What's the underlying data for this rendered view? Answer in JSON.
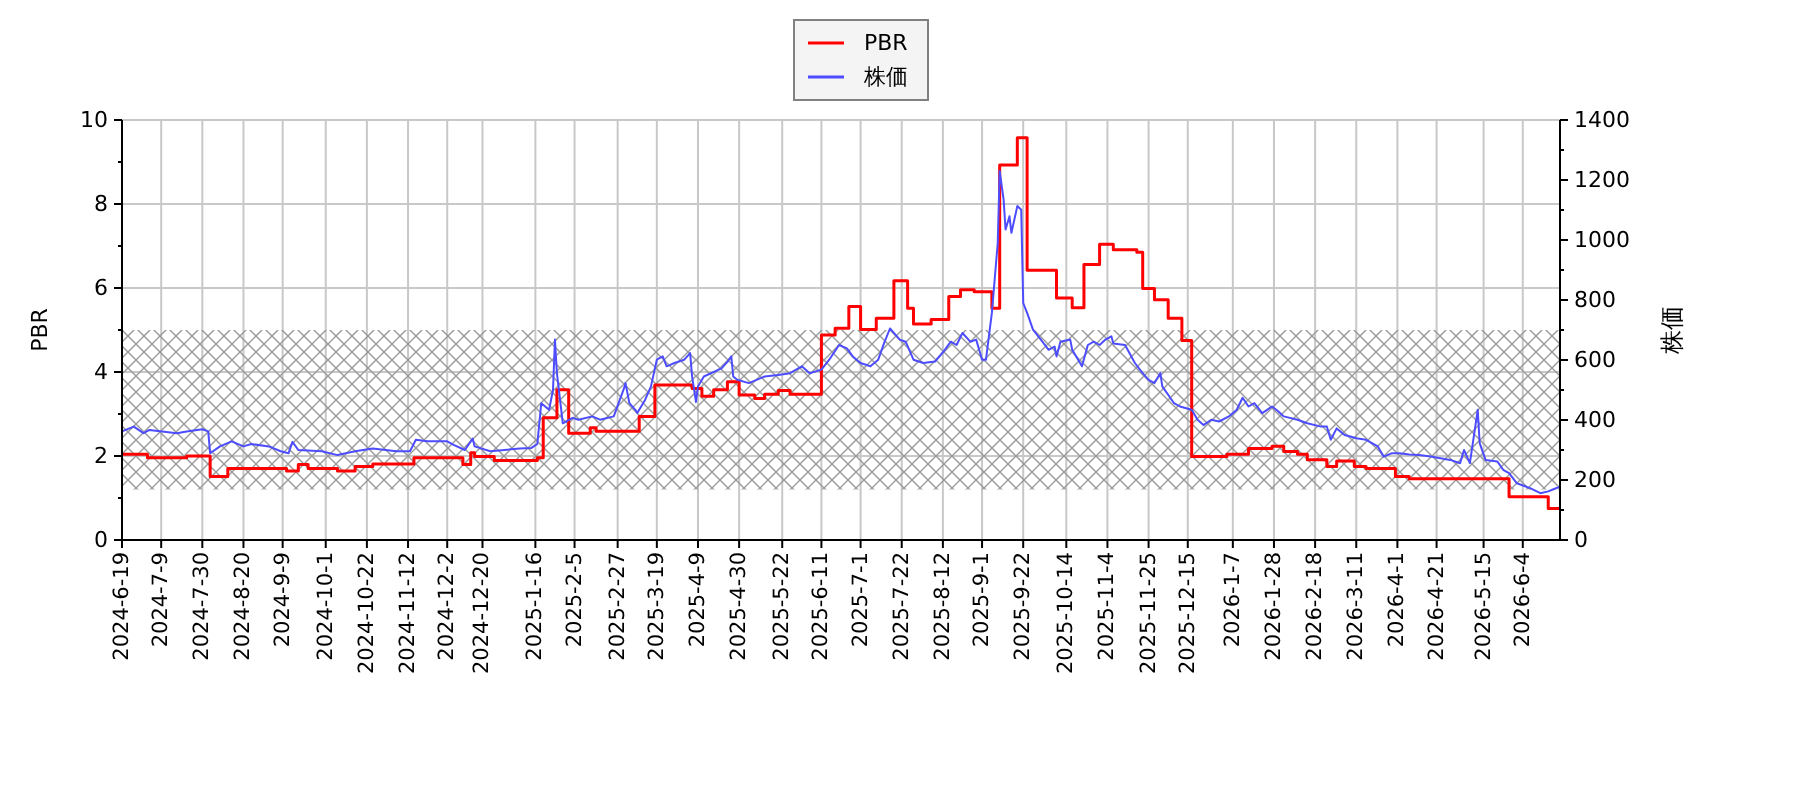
{
  "chart_data": {
    "type": "line",
    "ylabel": "PBR",
    "y2label": "株価",
    "xlim": [
      "2024-06-19",
      "2026-06-23"
    ],
    "xticks": [
      {
        "value": "2024-06-19",
        "label": "2024-6-19"
      },
      {
        "value": "2024-07-09",
        "label": "2024-7-9"
      },
      {
        "value": "2024-07-30",
        "label": "2024-7-30"
      },
      {
        "value": "2024-08-20",
        "label": "2024-8-20"
      },
      {
        "value": "2024-09-09",
        "label": "2024-9-9"
      },
      {
        "value": "2024-10-01",
        "label": "2024-10-1"
      },
      {
        "value": "2024-10-22",
        "label": "2024-10-22"
      },
      {
        "value": "2024-11-12",
        "label": "2024-11-12"
      },
      {
        "value": "2024-12-02",
        "label": "2024-12-2"
      },
      {
        "value": "2024-12-20",
        "label": "2024-12-20"
      },
      {
        "value": "2025-01-16",
        "label": "2025-1-16"
      },
      {
        "value": "2025-02-05",
        "label": "2025-2-5"
      },
      {
        "value": "2025-02-27",
        "label": "2025-2-27"
      },
      {
        "value": "2025-03-19",
        "label": "2025-3-19"
      },
      {
        "value": "2025-04-09",
        "label": "2025-4-9"
      },
      {
        "value": "2025-04-30",
        "label": "2025-4-30"
      },
      {
        "value": "2025-05-22",
        "label": "2025-5-22"
      },
      {
        "value": "2025-06-11",
        "label": "2025-6-11"
      },
      {
        "value": "2025-07-01",
        "label": "2025-7-1"
      },
      {
        "value": "2025-07-22",
        "label": "2025-7-22"
      },
      {
        "value": "2025-08-12",
        "label": "2025-8-12"
      },
      {
        "value": "2025-09-01",
        "label": "2025-9-1"
      },
      {
        "value": "2025-09-22",
        "label": "2025-9-22"
      },
      {
        "value": "2025-10-14",
        "label": "2025-10-14"
      },
      {
        "value": "2025-11-04",
        "label": "2025-11-4"
      },
      {
        "value": "2025-11-25",
        "label": "2025-11-25"
      },
      {
        "value": "2025-12-15",
        "label": "2025-12-15"
      },
      {
        "value": "2026-01-07",
        "label": "2026-1-7"
      },
      {
        "value": "2026-01-28",
        "label": "2026-1-28"
      },
      {
        "value": "2026-02-18",
        "label": "2026-2-18"
      },
      {
        "value": "2026-03-11",
        "label": "2026-3-11"
      },
      {
        "value": "2026-04-01",
        "label": "2026-4-1"
      },
      {
        "value": "2026-04-21",
        "label": "2026-4-21"
      },
      {
        "value": "2026-05-15",
        "label": "2026-5-15"
      },
      {
        "value": "2026-06-04",
        "label": "2026-6-4"
      }
    ],
    "ylim": [
      0,
      10
    ],
    "yticks": [
      0,
      {
        "value": 1,
        "label": null
      },
      2,
      {
        "value": 3,
        "label": null
      },
      4,
      {
        "value": 5,
        "label": null
      },
      6,
      {
        "value": 7,
        "label": null
      },
      8,
      {
        "value": 9,
        "label": null
      },
      10
    ],
    "y2lim": [
      0,
      1400
    ],
    "y2ticks": [
      0,
      {
        "value": 100,
        "label": null
      },
      200,
      {
        "value": 300,
        "label": null
      },
      400,
      {
        "value": 500,
        "label": null
      },
      600,
      {
        "value": 700,
        "label": null
      },
      800,
      {
        "value": 900,
        "label": null
      },
      1000,
      {
        "value": 1100,
        "label": null
      },
      1200,
      {
        "value": 1300,
        "label": null
      },
      1400
    ],
    "grid": true,
    "legend": "top",
    "bands": [
      {
        "axis": "y",
        "from": 1.2,
        "to": 5,
        "color": "#999999"
      }
    ],
    "series": [
      {
        "name": "PBR",
        "type": "step",
        "color": "#ff0000",
        "x": [
          "2024-06-19",
          "2024-07-02",
          "2024-07-22",
          "2024-08-03",
          "2024-08-12",
          "2024-09-11",
          "2024-09-17",
          "2024-09-22",
          "2024-10-07",
          "2024-10-16",
          "2024-10-25",
          "2024-11-15",
          "2024-12-10",
          "2024-12-14",
          "2024-12-16",
          "2024-12-26",
          "2025-01-17",
          "2025-01-20",
          "2025-01-27",
          "2025-02-02",
          "2025-02-13",
          "2025-02-16",
          "2025-03-10",
          "2025-03-18",
          "2025-04-06",
          "2025-04-11",
          "2025-04-17",
          "2025-04-24",
          "2025-04-30",
          "2025-05-08",
          "2025-05-13",
          "2025-05-20",
          "2025-05-26",
          "2025-06-11",
          "2025-06-18",
          "2025-06-25",
          "2025-07-01",
          "2025-07-09",
          "2025-07-18",
          "2025-07-25",
          "2025-07-28",
          "2025-08-06",
          "2025-08-15",
          "2025-08-21",
          "2025-08-28",
          "2025-09-06",
          "2025-09-10",
          "2025-09-19",
          "2025-09-24",
          "2025-10-09",
          "2025-10-17",
          "2025-10-23",
          "2025-10-31",
          "2025-11-07",
          "2025-11-19",
          "2025-11-22",
          "2025-11-28",
          "2025-12-05",
          "2025-12-12",
          "2025-12-17",
          "2026-01-04",
          "2026-01-15",
          "2026-01-27",
          "2026-02-02",
          "2026-02-09",
          "2026-02-14",
          "2026-02-24",
          "2026-03-01",
          "2026-03-10",
          "2026-03-16",
          "2026-03-31",
          "2026-04-07",
          "2026-05-28",
          "2026-06-17",
          "2026-06-23"
        ],
        "values": [
          2.04,
          1.96,
          2.0,
          1.51,
          1.7,
          1.64,
          1.8,
          1.7,
          1.64,
          1.75,
          1.81,
          1.96,
          1.8,
          2.08,
          1.99,
          1.89,
          1.96,
          2.91,
          3.58,
          2.54,
          2.67,
          2.59,
          2.94,
          3.69,
          3.61,
          3.42,
          3.58,
          3.77,
          3.45,
          3.37,
          3.47,
          3.56,
          3.47,
          4.88,
          5.04,
          5.56,
          5.01,
          5.28,
          6.17,
          5.52,
          5.14,
          5.25,
          5.8,
          5.96,
          5.91,
          5.52,
          8.93,
          9.58,
          6.42,
          5.76,
          5.53,
          6.56,
          7.04,
          6.91,
          6.85,
          5.99,
          5.72,
          5.28,
          4.75,
          1.99,
          2.04,
          2.18,
          2.23,
          2.11,
          2.04,
          1.91,
          1.75,
          1.88,
          1.75,
          1.7,
          1.51,
          1.46,
          1.03,
          0.75,
          0.75
        ]
      },
      {
        "name": "株価",
        "type": "line",
        "axis": "y2",
        "color": "#4d4dff",
        "x": [
          "2024-06-19",
          "2024-06-25",
          "2024-06-30",
          "2024-07-03",
          "2024-07-17",
          "2024-07-22",
          "2024-07-30",
          "2024-08-02",
          "2024-08-03",
          "2024-08-08",
          "2024-08-14",
          "2024-08-20",
          "2024-08-24",
          "2024-09-02",
          "2024-09-08",
          "2024-09-12",
          "2024-09-14",
          "2024-09-17",
          "2024-09-29",
          "2024-10-07",
          "2024-10-16",
          "2024-10-25",
          "2024-11-06",
          "2024-11-13",
          "2024-11-16",
          "2024-11-22",
          "2024-12-02",
          "2024-12-05",
          "2024-12-11",
          "2024-12-15",
          "2024-12-16",
          "2024-12-24",
          "2025-01-08",
          "2025-01-14",
          "2025-01-17",
          "2025-01-19",
          "2025-01-23",
          "2025-01-25",
          "2025-01-26",
          "2025-01-27",
          "2025-01-30",
          "2025-02-04",
          "2025-02-07",
          "2025-02-14",
          "2025-02-18",
          "2025-02-25",
          "2025-03-02",
          "2025-03-03",
          "2025-03-05",
          "2025-03-08",
          "2025-03-09",
          "2025-03-13",
          "2025-03-16",
          "2025-03-19",
          "2025-03-22",
          "2025-03-24",
          "2025-03-28",
          "2025-04-02",
          "2025-04-05",
          "2025-04-06",
          "2025-04-08",
          "2025-04-09",
          "2025-04-12",
          "2025-04-21",
          "2025-04-24",
          "2025-04-26",
          "2025-04-27",
          "2025-04-29",
          "2025-05-05",
          "2025-05-13",
          "2025-05-20",
          "2025-05-26",
          "2025-06-01",
          "2025-06-05",
          "2025-06-11",
          "2025-06-15",
          "2025-06-20",
          "2025-06-24",
          "2025-06-27",
          "2025-07-01",
          "2025-07-06",
          "2025-07-10",
          "2025-07-13",
          "2025-07-16",
          "2025-07-21",
          "2025-07-24",
          "2025-07-28",
          "2025-08-02",
          "2025-08-08",
          "2025-08-13",
          "2025-08-16",
          "2025-08-19",
          "2025-08-22",
          "2025-08-26",
          "2025-08-29",
          "2025-09-01",
          "2025-09-03",
          "2025-09-06",
          "2025-09-09",
          "2025-09-10",
          "2025-09-12",
          "2025-09-13",
          "2025-09-15",
          "2025-09-16",
          "2025-09-19",
          "2025-09-21",
          "2025-09-22",
          "2025-09-24",
          "2025-09-27",
          "2025-10-01",
          "2025-10-05",
          "2025-10-08",
          "2025-10-09",
          "2025-10-11",
          "2025-10-16",
          "2025-10-17",
          "2025-10-22",
          "2025-10-25",
          "2025-10-28",
          "2025-10-31",
          "2025-11-03",
          "2025-11-06",
          "2025-11-07",
          "2025-11-13",
          "2025-11-18",
          "2025-11-22",
          "2025-11-25",
          "2025-11-28",
          "2025-12-01",
          "2025-12-02",
          "2025-12-08",
          "2025-12-11",
          "2025-12-17",
          "2025-12-20",
          "2025-12-23",
          "2025-12-27",
          "2025-12-31",
          "2026-01-05",
          "2026-01-09",
          "2026-01-12",
          "2026-01-15",
          "2026-01-18",
          "2026-01-22",
          "2026-01-27",
          "2026-01-30",
          "2026-02-02",
          "2026-02-09",
          "2026-02-14",
          "2026-02-21",
          "2026-02-24",
          "2026-02-26",
          "2026-03-01",
          "2026-03-05",
          "2026-03-08",
          "2026-03-11",
          "2026-03-16",
          "2026-03-22",
          "2026-03-25",
          "2026-03-29",
          "2026-04-02",
          "2026-04-07",
          "2026-04-12",
          "2026-04-18",
          "2026-04-28",
          "2026-05-03",
          "2026-05-05",
          "2026-05-08",
          "2026-05-12",
          "2026-05-13",
          "2026-05-16",
          "2026-05-22",
          "2026-05-25",
          "2026-05-28",
          "2026-06-01",
          "2026-06-08",
          "2026-06-13",
          "2026-06-17",
          "2026-06-20",
          "2026-06-23"
        ],
        "values": [
          362,
          378,
          356,
          367,
          356,
          362,
          369,
          362,
          289,
          312,
          329,
          312,
          320,
          312,
          296,
          289,
          327,
          300,
          296,
          283,
          296,
          305,
          296,
          296,
          334,
          329,
          329,
          318,
          300,
          338,
          312,
          296,
          305,
          307,
          320,
          456,
          434,
          500,
          668,
          556,
          389,
          407,
          401,
          412,
          401,
          412,
          501,
          523,
          456,
          434,
          423,
          467,
          512,
          601,
          612,
          579,
          590,
          601,
          623,
          545,
          460,
          512,
          545,
          572,
          594,
          612,
          545,
          534,
          523,
          545,
          550,
          556,
          579,
          556,
          568,
          601,
          650,
          639,
          612,
          590,
          579,
          601,
          656,
          705,
          668,
          661,
          601,
          590,
          595,
          634,
          661,
          650,
          690,
          661,
          668,
          601,
          601,
          757,
          990,
          1230,
          1135,
          1035,
          1079,
          1024,
          1113,
          1101,
          790,
          757,
          701,
          668,
          634,
          645,
          612,
          661,
          668,
          634,
          579,
          650,
          661,
          650,
          668,
          679,
          655,
          650,
          590,
          556,
          534,
          523,
          556,
          512,
          456,
          445,
          434,
          401,
          383,
          401,
          395,
          412,
          434,
          474,
          445,
          456,
          423,
          445,
          430,
          412,
          401,
          389,
          378,
          378,
          334,
          372,
          350,
          345,
          339,
          334,
          312,
          278,
          289,
          289,
          285,
          283,
          278,
          267,
          256,
          300,
          256,
          434,
          323,
          267,
          262,
          234,
          223,
          189,
          172,
          156,
          162,
          170,
          178
        ]
      }
    ]
  }
}
